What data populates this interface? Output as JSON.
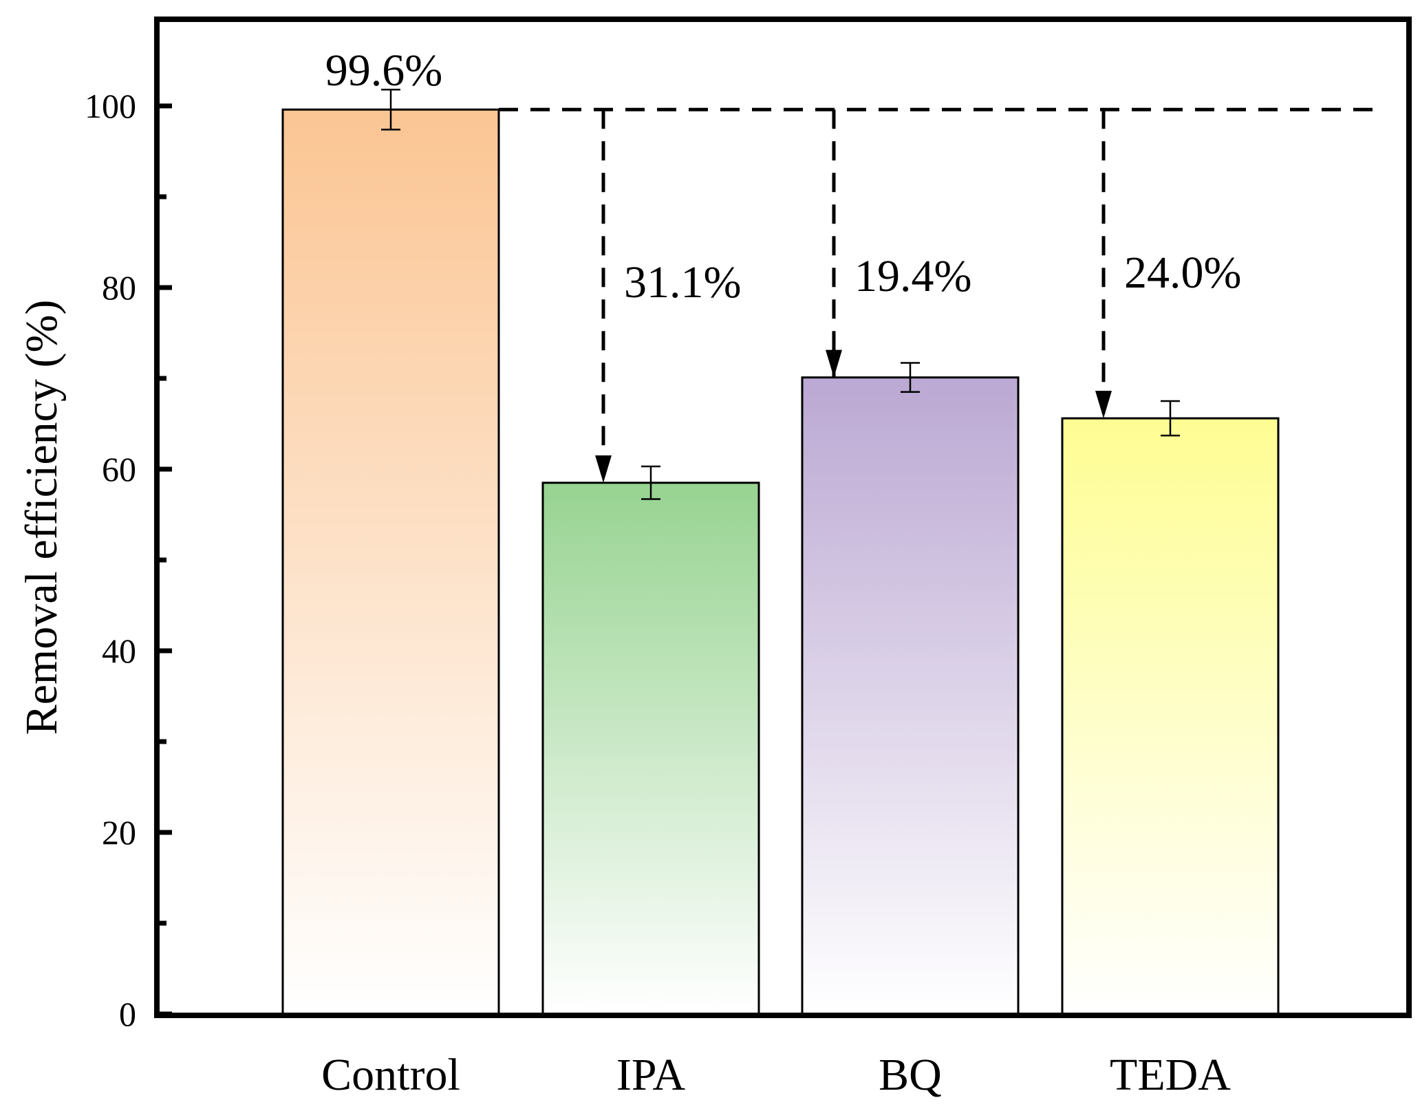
{
  "chart_data": {
    "type": "bar",
    "title": "",
    "xlabel": "",
    "ylabel": "Removal efficiency (%)",
    "ylim": [
      0,
      110
    ],
    "yticks": [
      0,
      20,
      40,
      60,
      80,
      100
    ],
    "minor_yticks": [
      10,
      30,
      50,
      70,
      90
    ],
    "categories": [
      "Control",
      "IPA",
      "BQ",
      "TEDA"
    ],
    "values": [
      99.6,
      58.5,
      70.1,
      65.6
    ],
    "errors": [
      2.2,
      1.8,
      1.6,
      1.9
    ],
    "colors": [
      "#fbc593",
      "#97d391",
      "#bba8d3",
      "#fefd93"
    ],
    "reference_line": {
      "value": 99.6,
      "style": "dashed"
    },
    "top_label": "99.6%",
    "annotations": [
      {
        "category": "IPA",
        "label": "31.1%"
      },
      {
        "category": "BQ",
        "label": "19.4%"
      },
      {
        "category": "TEDA",
        "label": "24.0%"
      }
    ]
  }
}
